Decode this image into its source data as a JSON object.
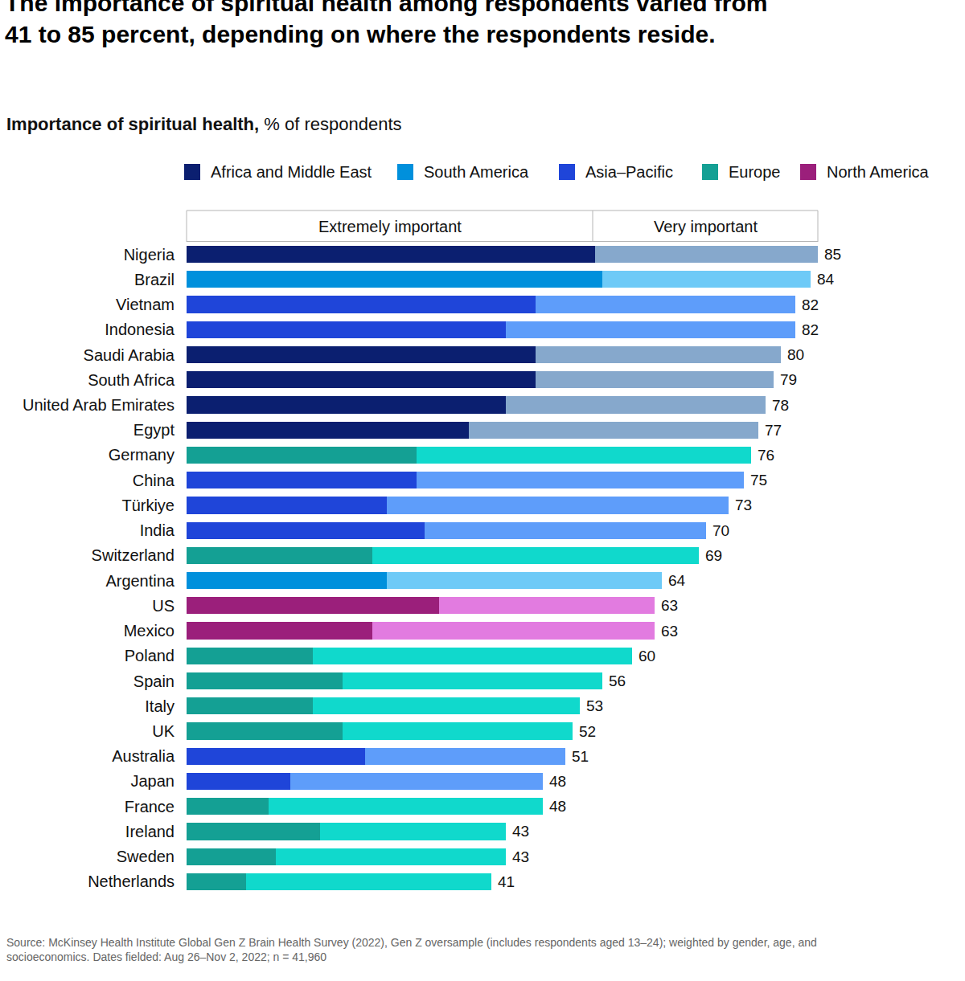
{
  "chart_data": {
    "type": "bar",
    "orientation": "horizontal",
    "stacked": true,
    "title": [
      "The importance of spiritual health among respondents varied from",
      "41 to 85 percent, depending on where the respondents reside."
    ],
    "subtitle_bold": "Importance of spiritual health,",
    "subtitle": "% of respondents",
    "source": [
      "Source: McKinsey Health Institute Global Gen Z Brain Health Survey (2022), Gen Z oversample (includes respondents aged 13–24); weighted by gender, age, and",
      "socioeconomics. Dates fielded: Aug 26–Nov 2, 2022; n = 41,960"
    ],
    "categories": [
      "Nigeria",
      "Brazil",
      "Vietnam",
      "Indonesia",
      "Saudi Arabia",
      "South Africa",
      "United Arab Emirates",
      "Egypt",
      "Germany",
      "China",
      "Türkiye",
      "India",
      "Switzerland",
      "Argentina",
      "US",
      "Mexico",
      "Poland",
      "Spain",
      "Italy",
      "UK",
      "Australia",
      "Japan",
      "France",
      "Ireland",
      "Sweden",
      "Netherlands"
    ],
    "regions": [
      "Africa and Middle East",
      "South America",
      "Asia–Pacific",
      "Asia–Pacific",
      "Africa and Middle East",
      "Africa and Middle East",
      "Africa and Middle East",
      "Africa and Middle East",
      "Europe",
      "Asia–Pacific",
      "Asia–Pacific",
      "Asia–Pacific",
      "Europe",
      "South America",
      "North America",
      "North America",
      "Europe",
      "Europe",
      "Europe",
      "Europe",
      "Asia–Pacific",
      "Asia–Pacific",
      "Europe",
      "Europe",
      "Europe",
      "Europe"
    ],
    "region_legend": [
      {
        "name": "Africa and Middle East",
        "color": "#0b1f70",
        "light_color": "#86a8cc"
      },
      {
        "name": "South America",
        "color": "#0090dc",
        "light_color": "#6ecaf7"
      },
      {
        "name": "Asia–Pacific",
        "color": "#1f45d9",
        "light_color": "#5e9dfa"
      },
      {
        "name": "Europe",
        "color": "#14a094",
        "light_color": "#10d9cc"
      },
      {
        "name": "North America",
        "color": "#9b1f7b",
        "light_color": "#e27be0"
      }
    ],
    "series": [
      {
        "name": "Extremely important",
        "values": [
          55,
          56,
          47,
          43,
          47,
          47,
          43,
          38,
          31,
          31,
          27,
          32,
          25,
          27,
          34,
          25,
          17,
          21,
          17,
          21,
          24,
          14,
          11,
          18,
          12,
          8
        ]
      },
      {
        "name": "Very important",
        "values": [
          30,
          28,
          35,
          39,
          33,
          32,
          35,
          39,
          45,
          44,
          46,
          38,
          44,
          37,
          29,
          38,
          43,
          35,
          36,
          31,
          27,
          34,
          37,
          25,
          31,
          33
        ]
      }
    ],
    "totals": [
      85,
      84,
      82,
      82,
      80,
      79,
      78,
      77,
      76,
      75,
      73,
      70,
      69,
      64,
      63,
      63,
      60,
      56,
      53,
      52,
      51,
      48,
      48,
      43,
      43,
      41
    ],
    "xlim": [
      0,
      85
    ],
    "xticks": [],
    "tick_labels": "y",
    "grid": false
  }
}
